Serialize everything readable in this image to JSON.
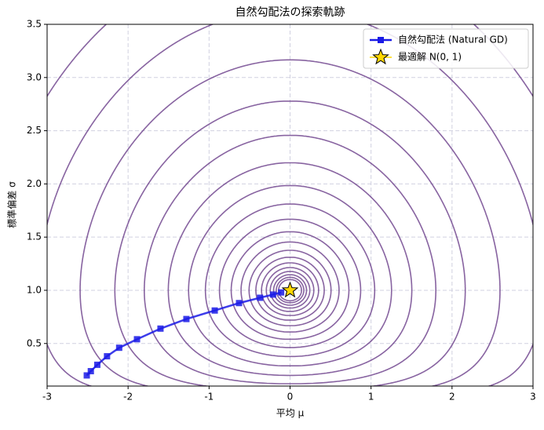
{
  "chart_data": {
    "type": "contour",
    "title": "自然勾配法の探索軌跡",
    "x_label": "平均 μ",
    "y_label": "標準偏差 σ",
    "xlim": [
      -3,
      3
    ],
    "ylim": [
      0.1,
      3.5
    ],
    "xticks": [
      -3,
      -2,
      -1,
      0,
      1,
      2,
      3
    ],
    "yticks": [
      0.5,
      {
        "value": 1,
        "label": "1.0"
      },
      1.5,
      {
        "value": 2,
        "label": "2.0"
      },
      2.5,
      {
        "value": 3,
        "label": "3.0"
      },
      3.5
    ],
    "grid": true,
    "contour_color": "#6a3d8a",
    "contour_levels": [
      0.01,
      0.0144,
      0.0207,
      0.0298,
      0.043,
      0.062,
      0.089,
      0.128,
      0.183,
      0.264,
      0.38,
      0.546,
      0.785,
      1.13,
      1.62,
      2.34,
      3.36,
      4.83,
      6.95,
      10
    ],
    "legend": "upper right",
    "series": [
      {
        "name": "自然勾配法 (Natural GD)",
        "color": "#1a1ae6",
        "marker": "square",
        "x": [
          -2.51,
          -2.46,
          -2.38,
          -2.26,
          -2.11,
          -1.89,
          -1.6,
          -1.28,
          -0.93,
          -0.63,
          -0.37,
          -0.21,
          -0.11
        ],
        "values": [
          0.2,
          0.24,
          0.3,
          0.38,
          0.46,
          0.54,
          0.64,
          0.73,
          0.81,
          0.88,
          0.93,
          0.96,
          0.98
        ]
      },
      {
        "name": "最適解 N(0, 1)",
        "color": "#ffd700",
        "marker": "star",
        "x": [
          0
        ],
        "values": [
          1
        ]
      }
    ]
  }
}
